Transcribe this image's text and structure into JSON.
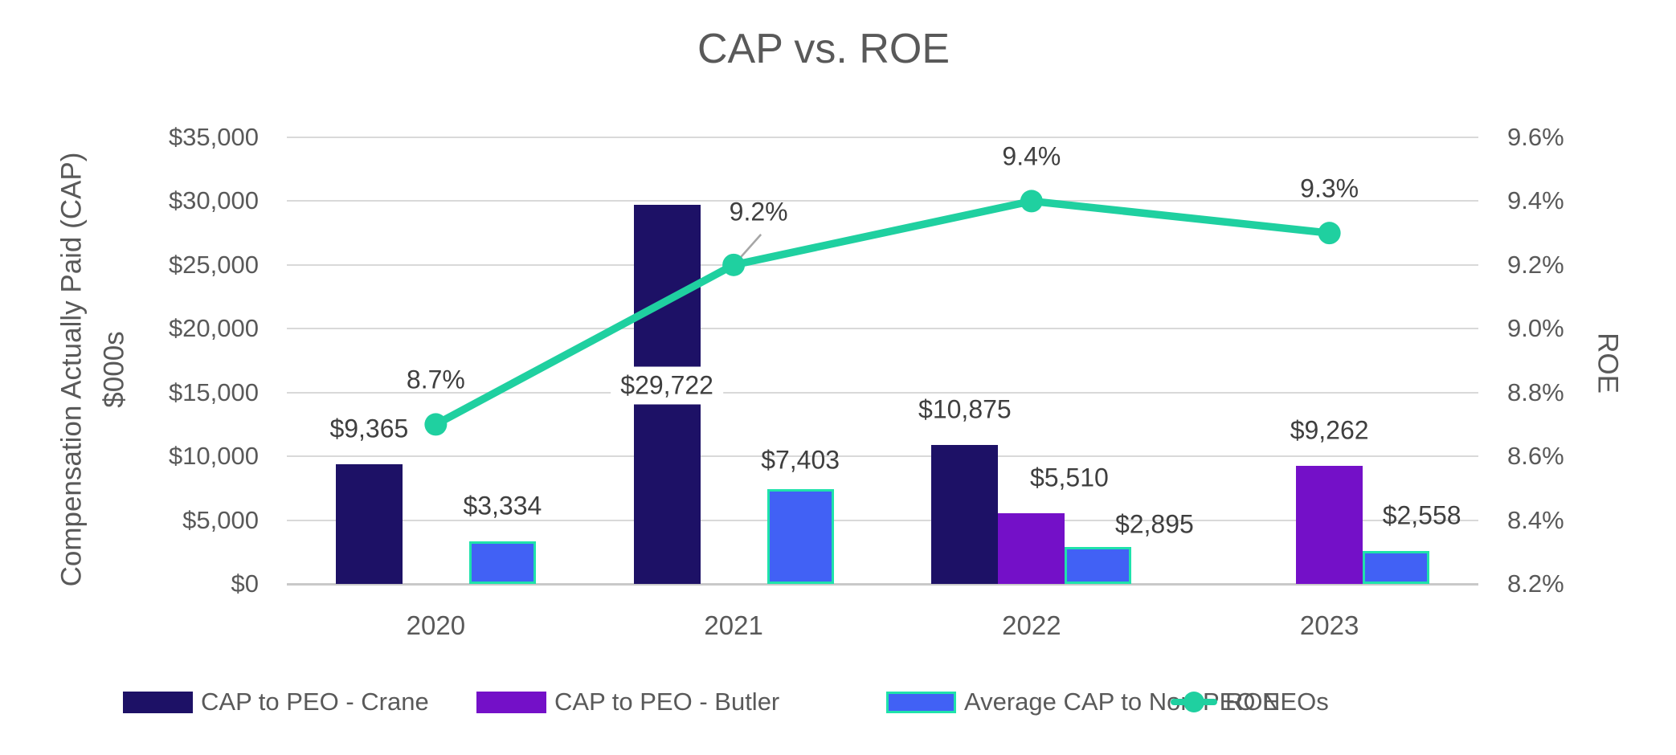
{
  "chart_data": {
    "type": "combo-bar-line",
    "title": "CAP vs. ROE",
    "categories": [
      "2020",
      "2021",
      "2022",
      "2023"
    ],
    "bar_series": [
      {
        "name": "CAP to PEO - Crane",
        "color": "#1d1166",
        "values": [
          9365,
          29722,
          10875,
          null
        ],
        "labels": [
          "$9,365",
          "$29,722",
          "$10,875",
          null
        ]
      },
      {
        "name": "CAP to PEO - Butler",
        "color": "#7410c8",
        "values": [
          null,
          null,
          5510,
          9262
        ],
        "labels": [
          null,
          null,
          "$5,510",
          "$9,262"
        ]
      },
      {
        "name": "Average CAP to Non-PEO NEOs",
        "color": "#4161f5",
        "border_color": "#1fe2ab",
        "values": [
          3334,
          7403,
          2895,
          2558
        ],
        "labels": [
          "$3,334",
          "$7,403",
          "$2,895",
          "$2,558"
        ]
      }
    ],
    "line_series": {
      "name": "ROE",
      "color": "#1fd0a0",
      "values": [
        8.7,
        9.2,
        9.4,
        9.3
      ],
      "labels": [
        "8.7%",
        "9.2%",
        "9.4%",
        "9.3%"
      ]
    },
    "y1_axis": {
      "title": "Compensation Actually Paid (CAP)",
      "subtitle": "$000s",
      "min": 0,
      "max": 35000,
      "ticks": [
        "$35,000",
        "$30,000",
        "$25,000",
        "$20,000",
        "$15,000",
        "$10,000",
        "$5,000",
        "$0"
      ]
    },
    "y2_axis": {
      "title": "ROE",
      "min": 8.2,
      "max": 9.6,
      "ticks": [
        "9.6%",
        "9.4%",
        "9.2%",
        "9.0%",
        "8.8%",
        "8.6%",
        "8.4%",
        "8.2%"
      ]
    },
    "grid": true,
    "legend_position": "bottom",
    "style": {
      "gridline": "#d9d9d9",
      "axis_line": "#c9c9c9",
      "tick_text": "#595959",
      "label_text": "#3f3f3f",
      "leader_line": "#a6a6a6",
      "background": "#ffffff"
    }
  }
}
